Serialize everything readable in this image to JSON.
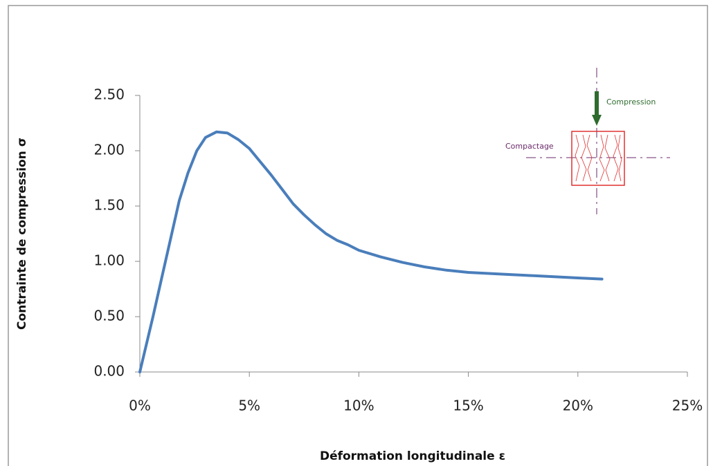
{
  "chart_data": {
    "type": "line",
    "x_label": "Déformation longitudinale ε",
    "y_label": "Contrainte de compression σ",
    "x": [
      0,
      0.3,
      0.6,
      1.0,
      1.4,
      1.8,
      2.2,
      2.6,
      3.0,
      3.5,
      4.0,
      4.5,
      5.0,
      5.5,
      6.0,
      6.5,
      7.0,
      7.5,
      8.0,
      8.5,
      9.0,
      9.5,
      10.0,
      11,
      12,
      13,
      14,
      15,
      16,
      17,
      18,
      19,
      20,
      21.1
    ],
    "values": [
      0,
      0.25,
      0.5,
      0.85,
      1.2,
      1.55,
      1.8,
      2.0,
      2.12,
      2.17,
      2.16,
      2.1,
      2.02,
      1.9,
      1.78,
      1.65,
      1.52,
      1.42,
      1.33,
      1.25,
      1.19,
      1.15,
      1.1,
      1.04,
      0.99,
      0.95,
      0.92,
      0.9,
      0.89,
      0.88,
      0.87,
      0.86,
      0.85,
      0.84
    ],
    "color": "#4a7ebb",
    "xlim": [
      0,
      25
    ],
    "xticks": [
      {
        "value": 0,
        "label": "0%"
      },
      {
        "value": 5,
        "label": "5%"
      },
      {
        "value": 10,
        "label": "10%"
      },
      {
        "value": 15,
        "label": "15%"
      },
      {
        "value": 20,
        "label": "20%"
      },
      {
        "value": 25,
        "label": "25%"
      }
    ],
    "ylim": [
      0,
      2.5
    ],
    "yticks": [
      {
        "value": 0,
        "label": "0.00"
      },
      {
        "value": 0.5,
        "label": "0.50"
      },
      {
        "value": 1,
        "label": "1.00"
      },
      {
        "value": 1.5,
        "label": "1.50"
      },
      {
        "value": 2,
        "label": "2.00"
      },
      {
        "value": 2.5,
        "label": "2.50"
      }
    ],
    "grid": false,
    "annotations": [
      "Compression",
      "Compactage"
    ]
  }
}
